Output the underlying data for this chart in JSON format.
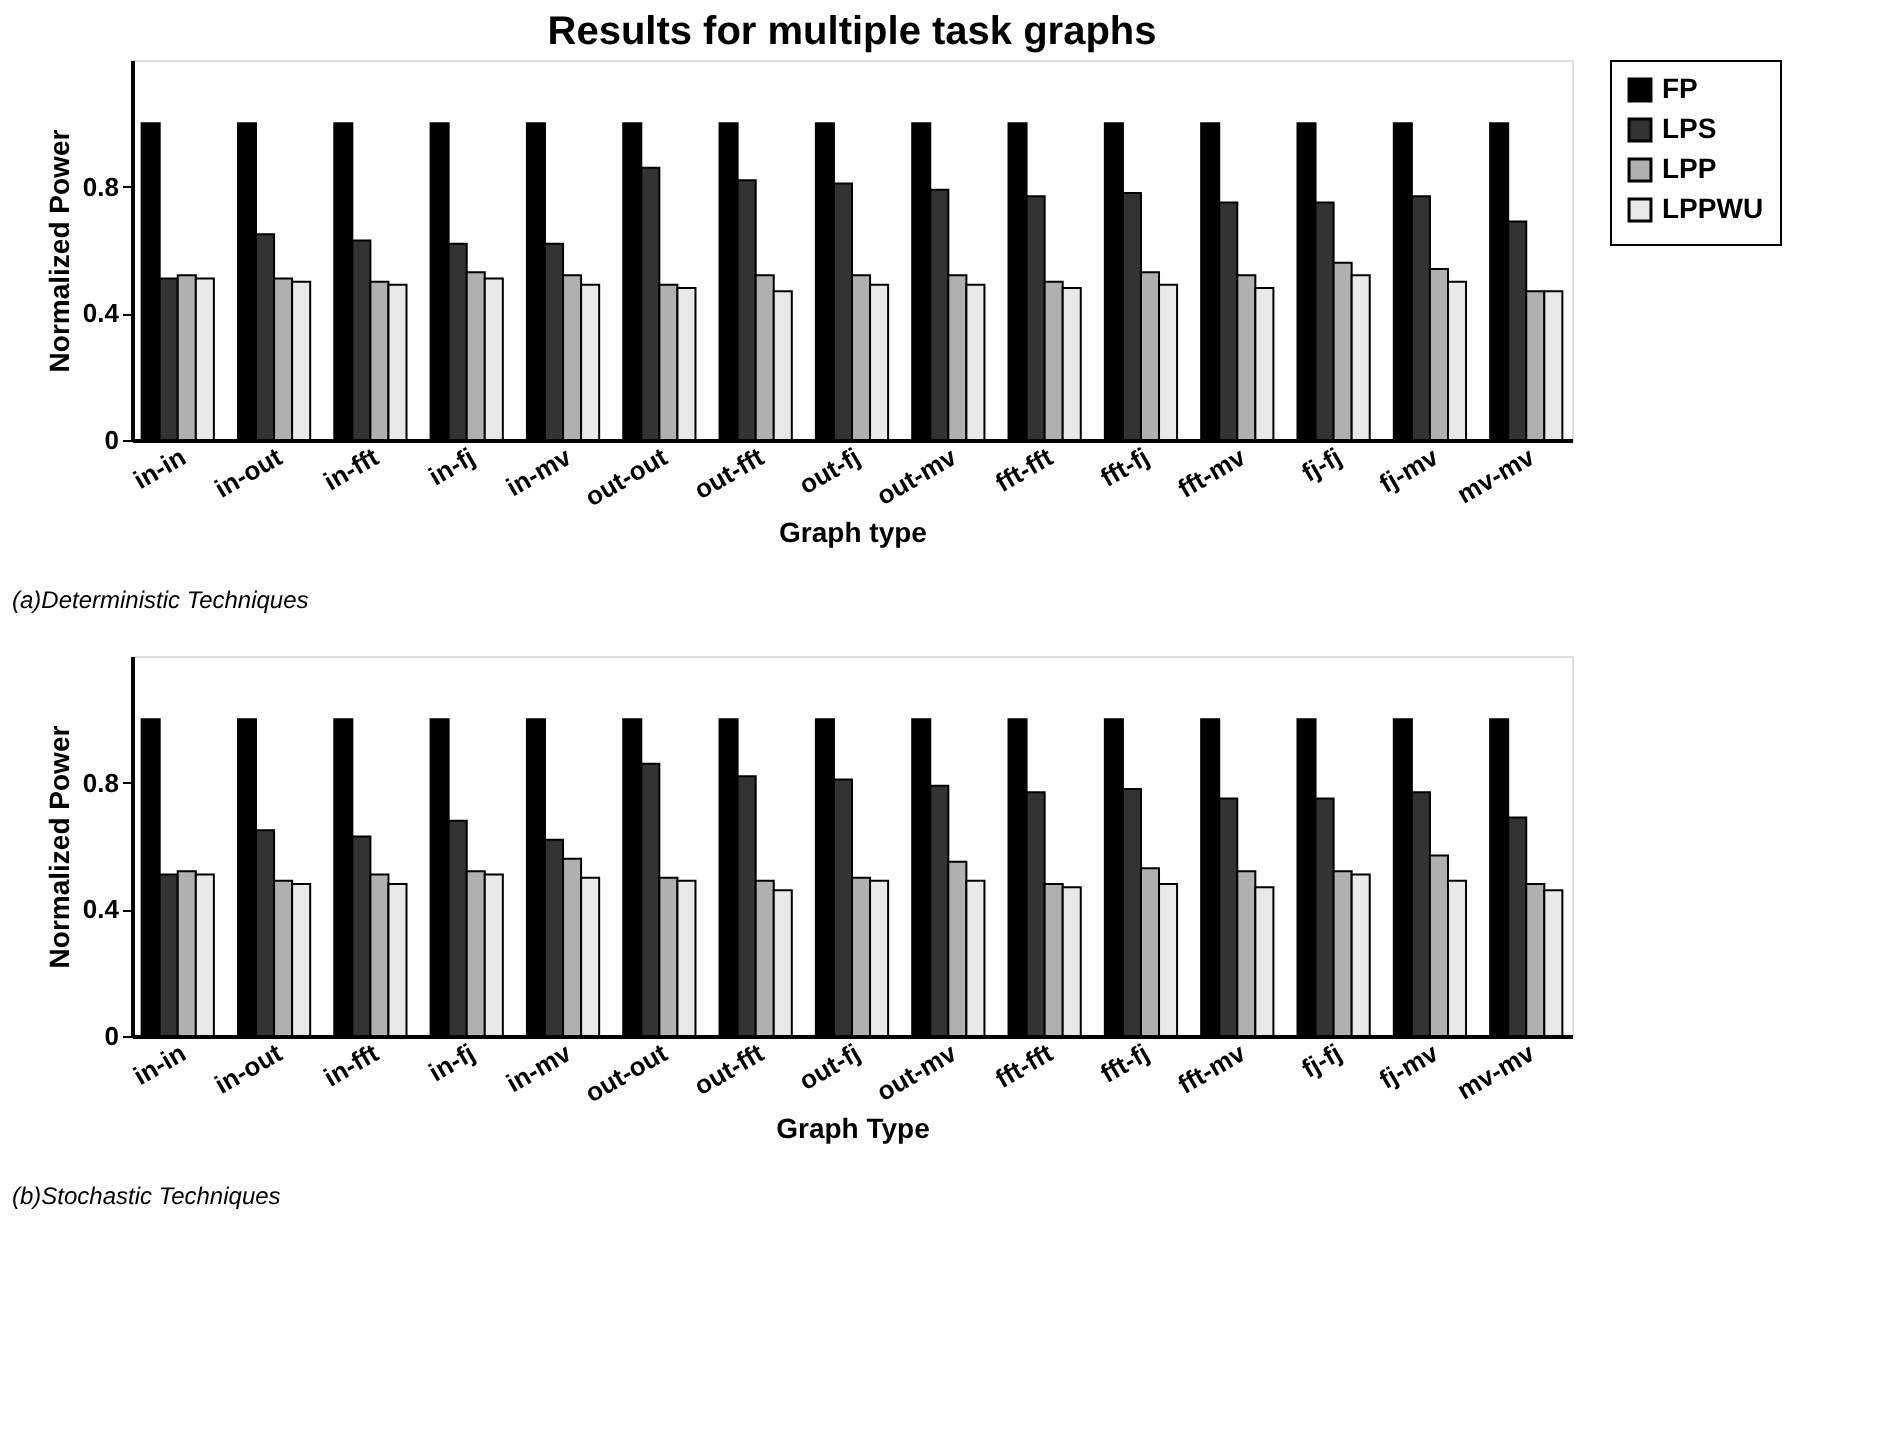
{
  "chart_data": [
    {
      "type": "bar",
      "title": "Results for multiple task graphs",
      "xlabel": "Graph type",
      "ylabel": "Normalized Power",
      "annotations": [
        "(a)Deterministic Techniques"
      ],
      "categories": [
        "in-in",
        "in-out",
        "in-fft",
        "in-fj",
        "in-mv",
        "out-out",
        "out-fft",
        "out-fj",
        "out-mv",
        "fft-fft",
        "fft-fj",
        "fft-mv",
        "fj-fj",
        "fj-mv",
        "mv-mv"
      ],
      "series": [
        {
          "name": "FP",
          "color": "#000000",
          "values": [
            1,
            1,
            1,
            1,
            1,
            1,
            1,
            1,
            1,
            1,
            1,
            1,
            1,
            1,
            1
          ]
        },
        {
          "name": "LPS",
          "color": "#333333",
          "values": [
            0.51,
            0.65,
            0.63,
            0.62,
            0.62,
            0.86,
            0.82,
            0.81,
            0.79,
            0.77,
            0.78,
            0.75,
            0.75,
            0.77,
            0.69
          ]
        },
        {
          "name": "LPP",
          "color": "#b0b0b0",
          "values": [
            0.52,
            0.51,
            0.5,
            0.53,
            0.52,
            0.49,
            0.52,
            0.52,
            0.52,
            0.5,
            0.53,
            0.52,
            0.56,
            0.54,
            0.47
          ]
        },
        {
          "name": "LPPWU",
          "color": "#e8e8e8",
          "values": [
            0.51,
            0.5,
            0.49,
            0.51,
            0.49,
            0.48,
            0.47,
            0.49,
            0.49,
            0.48,
            0.49,
            0.48,
            0.52,
            0.5,
            0.47
          ]
        }
      ],
      "ylim": [
        0,
        1.2
      ],
      "yticks": [
        0,
        0.4,
        0.8
      ],
      "grid": false,
      "legend": "top right"
    },
    {
      "type": "bar",
      "xlabel": "Graph Type",
      "ylabel": "Normalized Power",
      "annotations": [
        "(b)Stochastic Techniques"
      ],
      "categories": [
        "in-in",
        "in-out",
        "in-fft",
        "in-fj",
        "in-mv",
        "out-out",
        "out-fft",
        "out-fj",
        "out-mv",
        "fft-fft",
        "fft-fj",
        "fft-mv",
        "fj-fj",
        "fj-mv",
        "mv-mv"
      ],
      "series": [
        {
          "name": "FP",
          "color": "#000000",
          "values": [
            1,
            1,
            1,
            1,
            1,
            1,
            1,
            1,
            1,
            1,
            1,
            1,
            1,
            1,
            1
          ]
        },
        {
          "name": "LPS",
          "color": "#333333",
          "values": [
            0.51,
            0.65,
            0.63,
            0.68,
            0.62,
            0.86,
            0.82,
            0.81,
            0.79,
            0.77,
            0.78,
            0.75,
            0.75,
            0.77,
            0.69
          ]
        },
        {
          "name": "LPP",
          "color": "#b0b0b0",
          "values": [
            0.52,
            0.49,
            0.51,
            0.52,
            0.56,
            0.5,
            0.49,
            0.5,
            0.55,
            0.48,
            0.53,
            0.52,
            0.52,
            0.57,
            0.48
          ]
        },
        {
          "name": "LPPWU",
          "color": "#e8e8e8",
          "values": [
            0.51,
            0.48,
            0.48,
            0.51,
            0.5,
            0.49,
            0.46,
            0.49,
            0.49,
            0.47,
            0.48,
            0.47,
            0.51,
            0.49,
            0.46
          ]
        }
      ],
      "ylim": [
        0,
        1.2
      ],
      "yticks": [
        0,
        0.4,
        0.8
      ],
      "grid": false
    }
  ]
}
